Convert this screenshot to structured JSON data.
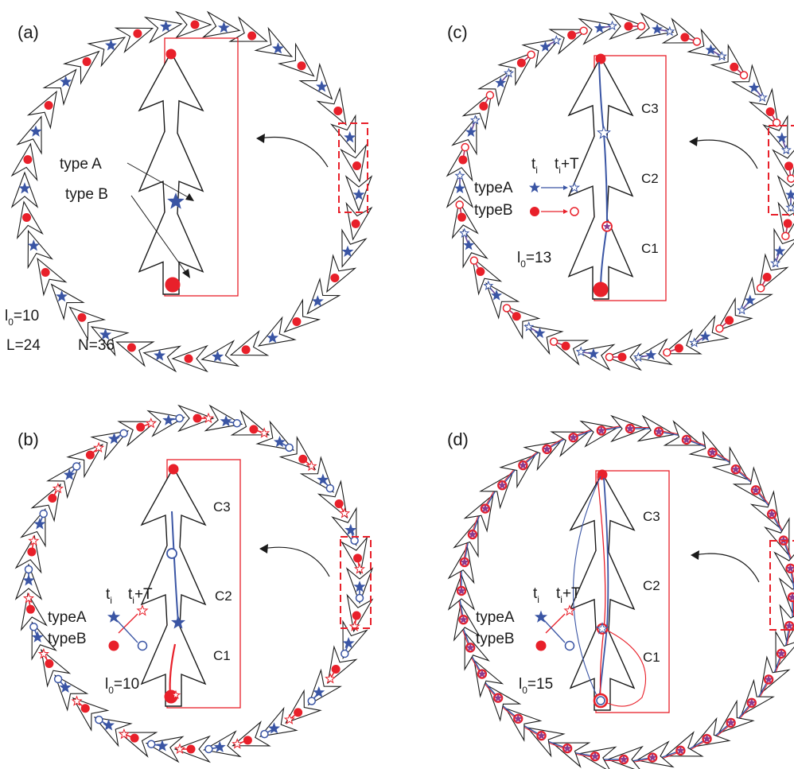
{
  "panels": [
    {
      "id": "a",
      "tag": "(a)",
      "params": {
        "l0_symbol": "l",
        "l0_sub": "0",
        "l0_value": "=10",
        "L": "L=24",
        "N": "N=36"
      },
      "annotations": {
        "typeA": "type A",
        "typeB": "type B"
      },
      "mode": "static"
    },
    {
      "id": "b",
      "tag": "(b)",
      "params": {
        "l0_symbol": "l",
        "l0_sub": "0",
        "l0_value": "=10"
      },
      "cells": [
        "C3",
        "C2",
        "C1"
      ],
      "legend": {
        "typeA": "typeA",
        "typeB": "typeB",
        "ti": "t",
        "ti_sub": "i",
        "tiT": "t",
        "tiT_sub": "i",
        "tiT_suffix": "+T"
      },
      "mode": "swap"
    },
    {
      "id": "c",
      "tag": "(c)",
      "params": {
        "l0_symbol": "l",
        "l0_sub": "0",
        "l0_value": "=13"
      },
      "cells": [
        "C3",
        "C2",
        "C1"
      ],
      "legend": {
        "typeA": "typeA",
        "typeB": "typeB",
        "ti": "t",
        "ti_sub": "i",
        "tiT": "t",
        "tiT_sub": "i",
        "tiT_suffix": "+T"
      },
      "mode": "forward"
    },
    {
      "id": "d",
      "tag": "(d)",
      "params": {
        "l0_symbol": "l",
        "l0_sub": "0",
        "l0_value": "=15"
      },
      "cells": [
        "C3",
        "C2",
        "C1"
      ],
      "legend": {
        "typeA": "typeA",
        "typeB": "typeB",
        "ti": "t",
        "ti_sub": "i",
        "tiT": "t",
        "tiT_sub": "i",
        "tiT_suffix": "+T"
      },
      "mode": "loop"
    }
  ],
  "colors": {
    "typeA": "#3a55a4",
    "typeB": "#e8202a",
    "outline": "#1a1a1a"
  }
}
